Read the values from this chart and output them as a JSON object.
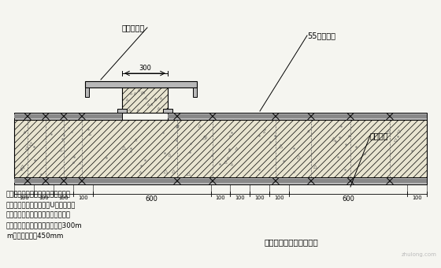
{
  "bg_color": "#f5f5f0",
  "line_color": "#000000",
  "title": "大模板与小钢模连接构造",
  "label_dingxing": "定型钢模板",
  "label_55": "55型钢模板",
  "label_zhishui": "止水螺杆",
  "note_line1": "注：大模板与小钢模连接处，定型作",
  "note_line2": "成与小钢模孔径对应，用U型卡满布连",
  "note_line3": "接固定，墙面支撑体系按照常规做法",
  "note_line4": "柱两侧第一排止水螺杆竖向间距300m",
  "note_line5": "m，其余间距为450mm",
  "dim_300": "300",
  "dim_600a": "600",
  "dim_600b": "600",
  "dim_100s": [
    "100",
    "100",
    "100",
    "100"
  ],
  "dim_100r": [
    "100",
    "100",
    "100",
    "100"
  ],
  "dim_100_last": "100",
  "wall_fill_color": "#e8e4d0",
  "steel_color": "#b8b8b8",
  "steel_dark": "#888888",
  "font_size_label": 7.0,
  "font_size_note": 6.2,
  "font_size_dim": 6.0,
  "font_size_title": 7.5
}
